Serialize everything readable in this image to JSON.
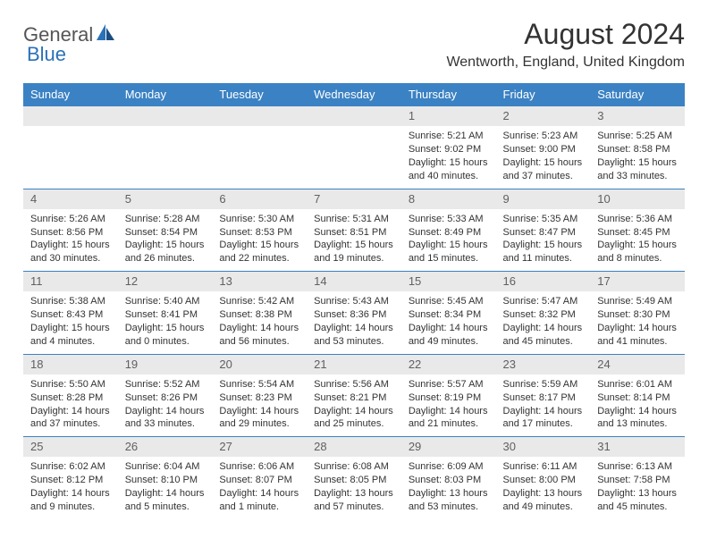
{
  "logo": {
    "text1": "General",
    "text2": "Blue"
  },
  "title": "August 2024",
  "location": "Wentworth, England, United Kingdom",
  "colors": {
    "header_bg": "#3b82c4",
    "header_text": "#ffffff",
    "daynum_bg": "#e9e9e9",
    "daynum_text": "#606060",
    "border": "#3b82c4",
    "logo_blue": "#2a71b8"
  },
  "dayHeaders": [
    "Sunday",
    "Monday",
    "Tuesday",
    "Wednesday",
    "Thursday",
    "Friday",
    "Saturday"
  ],
  "weeks": [
    [
      {
        "day": "",
        "sunrise": "",
        "sunset": "",
        "daylight": ""
      },
      {
        "day": "",
        "sunrise": "",
        "sunset": "",
        "daylight": ""
      },
      {
        "day": "",
        "sunrise": "",
        "sunset": "",
        "daylight": ""
      },
      {
        "day": "",
        "sunrise": "",
        "sunset": "",
        "daylight": ""
      },
      {
        "day": "1",
        "sunrise": "Sunrise: 5:21 AM",
        "sunset": "Sunset: 9:02 PM",
        "daylight": "Daylight: 15 hours and 40 minutes."
      },
      {
        "day": "2",
        "sunrise": "Sunrise: 5:23 AM",
        "sunset": "Sunset: 9:00 PM",
        "daylight": "Daylight: 15 hours and 37 minutes."
      },
      {
        "day": "3",
        "sunrise": "Sunrise: 5:25 AM",
        "sunset": "Sunset: 8:58 PM",
        "daylight": "Daylight: 15 hours and 33 minutes."
      }
    ],
    [
      {
        "day": "4",
        "sunrise": "Sunrise: 5:26 AM",
        "sunset": "Sunset: 8:56 PM",
        "daylight": "Daylight: 15 hours and 30 minutes."
      },
      {
        "day": "5",
        "sunrise": "Sunrise: 5:28 AM",
        "sunset": "Sunset: 8:54 PM",
        "daylight": "Daylight: 15 hours and 26 minutes."
      },
      {
        "day": "6",
        "sunrise": "Sunrise: 5:30 AM",
        "sunset": "Sunset: 8:53 PM",
        "daylight": "Daylight: 15 hours and 22 minutes."
      },
      {
        "day": "7",
        "sunrise": "Sunrise: 5:31 AM",
        "sunset": "Sunset: 8:51 PM",
        "daylight": "Daylight: 15 hours and 19 minutes."
      },
      {
        "day": "8",
        "sunrise": "Sunrise: 5:33 AM",
        "sunset": "Sunset: 8:49 PM",
        "daylight": "Daylight: 15 hours and 15 minutes."
      },
      {
        "day": "9",
        "sunrise": "Sunrise: 5:35 AM",
        "sunset": "Sunset: 8:47 PM",
        "daylight": "Daylight: 15 hours and 11 minutes."
      },
      {
        "day": "10",
        "sunrise": "Sunrise: 5:36 AM",
        "sunset": "Sunset: 8:45 PM",
        "daylight": "Daylight: 15 hours and 8 minutes."
      }
    ],
    [
      {
        "day": "11",
        "sunrise": "Sunrise: 5:38 AM",
        "sunset": "Sunset: 8:43 PM",
        "daylight": "Daylight: 15 hours and 4 minutes."
      },
      {
        "day": "12",
        "sunrise": "Sunrise: 5:40 AM",
        "sunset": "Sunset: 8:41 PM",
        "daylight": "Daylight: 15 hours and 0 minutes."
      },
      {
        "day": "13",
        "sunrise": "Sunrise: 5:42 AM",
        "sunset": "Sunset: 8:38 PM",
        "daylight": "Daylight: 14 hours and 56 minutes."
      },
      {
        "day": "14",
        "sunrise": "Sunrise: 5:43 AM",
        "sunset": "Sunset: 8:36 PM",
        "daylight": "Daylight: 14 hours and 53 minutes."
      },
      {
        "day": "15",
        "sunrise": "Sunrise: 5:45 AM",
        "sunset": "Sunset: 8:34 PM",
        "daylight": "Daylight: 14 hours and 49 minutes."
      },
      {
        "day": "16",
        "sunrise": "Sunrise: 5:47 AM",
        "sunset": "Sunset: 8:32 PM",
        "daylight": "Daylight: 14 hours and 45 minutes."
      },
      {
        "day": "17",
        "sunrise": "Sunrise: 5:49 AM",
        "sunset": "Sunset: 8:30 PM",
        "daylight": "Daylight: 14 hours and 41 minutes."
      }
    ],
    [
      {
        "day": "18",
        "sunrise": "Sunrise: 5:50 AM",
        "sunset": "Sunset: 8:28 PM",
        "daylight": "Daylight: 14 hours and 37 minutes."
      },
      {
        "day": "19",
        "sunrise": "Sunrise: 5:52 AM",
        "sunset": "Sunset: 8:26 PM",
        "daylight": "Daylight: 14 hours and 33 minutes."
      },
      {
        "day": "20",
        "sunrise": "Sunrise: 5:54 AM",
        "sunset": "Sunset: 8:23 PM",
        "daylight": "Daylight: 14 hours and 29 minutes."
      },
      {
        "day": "21",
        "sunrise": "Sunrise: 5:56 AM",
        "sunset": "Sunset: 8:21 PM",
        "daylight": "Daylight: 14 hours and 25 minutes."
      },
      {
        "day": "22",
        "sunrise": "Sunrise: 5:57 AM",
        "sunset": "Sunset: 8:19 PM",
        "daylight": "Daylight: 14 hours and 21 minutes."
      },
      {
        "day": "23",
        "sunrise": "Sunrise: 5:59 AM",
        "sunset": "Sunset: 8:17 PM",
        "daylight": "Daylight: 14 hours and 17 minutes."
      },
      {
        "day": "24",
        "sunrise": "Sunrise: 6:01 AM",
        "sunset": "Sunset: 8:14 PM",
        "daylight": "Daylight: 14 hours and 13 minutes."
      }
    ],
    [
      {
        "day": "25",
        "sunrise": "Sunrise: 6:02 AM",
        "sunset": "Sunset: 8:12 PM",
        "daylight": "Daylight: 14 hours and 9 minutes."
      },
      {
        "day": "26",
        "sunrise": "Sunrise: 6:04 AM",
        "sunset": "Sunset: 8:10 PM",
        "daylight": "Daylight: 14 hours and 5 minutes."
      },
      {
        "day": "27",
        "sunrise": "Sunrise: 6:06 AM",
        "sunset": "Sunset: 8:07 PM",
        "daylight": "Daylight: 14 hours and 1 minute."
      },
      {
        "day": "28",
        "sunrise": "Sunrise: 6:08 AM",
        "sunset": "Sunset: 8:05 PM",
        "daylight": "Daylight: 13 hours and 57 minutes."
      },
      {
        "day": "29",
        "sunrise": "Sunrise: 6:09 AM",
        "sunset": "Sunset: 8:03 PM",
        "daylight": "Daylight: 13 hours and 53 minutes."
      },
      {
        "day": "30",
        "sunrise": "Sunrise: 6:11 AM",
        "sunset": "Sunset: 8:00 PM",
        "daylight": "Daylight: 13 hours and 49 minutes."
      },
      {
        "day": "31",
        "sunrise": "Sunrise: 6:13 AM",
        "sunset": "Sunset: 7:58 PM",
        "daylight": "Daylight: 13 hours and 45 minutes."
      }
    ]
  ]
}
